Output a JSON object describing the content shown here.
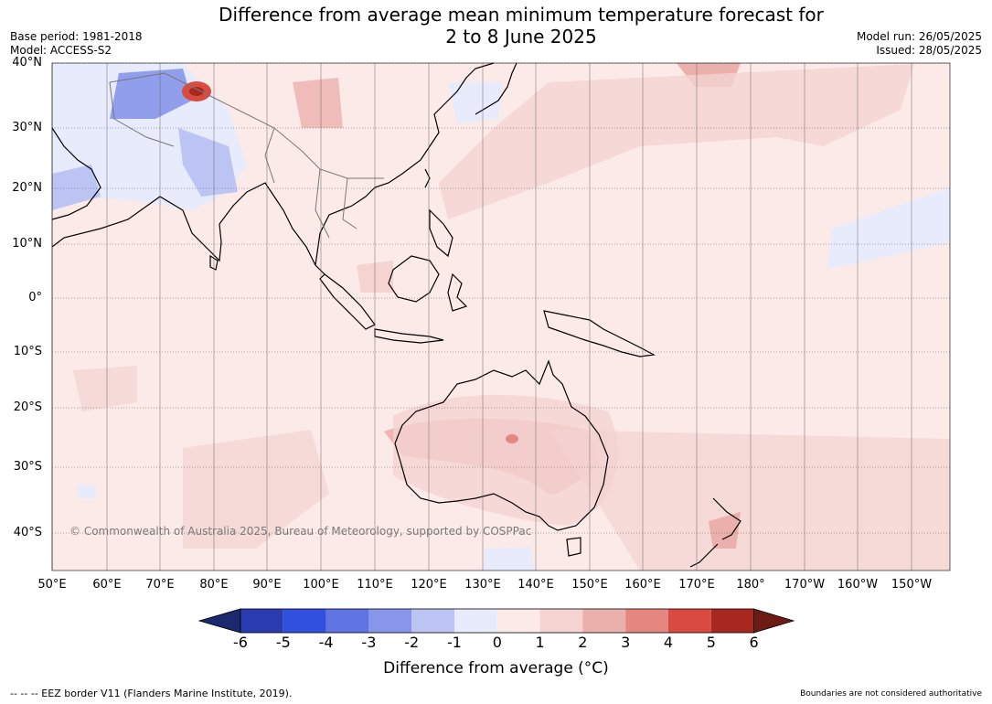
{
  "title": {
    "line1": "Difference from average mean minimum temperature forecast for",
    "line2": "2 to 8 June 2025"
  },
  "meta": {
    "base_period": "Base period: 1981-2018",
    "model": "Model: ACCESS-S2",
    "model_run": "Model run: 26/05/2025",
    "issued": "Issued: 28/05/2025"
  },
  "map": {
    "lat_labels": [
      "40°N",
      "30°N",
      "20°N",
      "10°N",
      "0°",
      "10°S",
      "20°S",
      "30°S",
      "40°S"
    ],
    "lon_labels": [
      "50°E",
      "60°E",
      "70°E",
      "80°E",
      "90°E",
      "100°E",
      "110°E",
      "120°E",
      "130°E",
      "140°E",
      "150°E",
      "160°E",
      "170°E",
      "180°",
      "170°W",
      "160°W",
      "150°W"
    ],
    "background_color": "#fceae8",
    "land_outline_color": "#000000"
  },
  "colorbar": {
    "ticks": [
      "-6",
      "-5",
      "-4",
      "-3",
      "-2",
      "-1",
      "0",
      "1",
      "2",
      "3",
      "4",
      "5",
      "6"
    ],
    "colors": [
      "#1b2a6e",
      "#2a3cb0",
      "#3150e0",
      "#5f73e3",
      "#8796ea",
      "#bcc4f3",
      "#e8ebfb",
      "#fceae8",
      "#f4d3d1",
      "#ecb0ac",
      "#e68680",
      "#d94a40",
      "#a8281f",
      "#6e1a15"
    ],
    "label": "Difference from average (°C)"
  },
  "footer": {
    "copyright": "© Commonwealth of Australia 2025, Bureau of Meteorology, supported by COSPPac",
    "eez": "-- -- -- EEZ border V11 (Flanders Marine Institute, 2019).",
    "boundaries": "Boundaries are not considered authoritative"
  }
}
